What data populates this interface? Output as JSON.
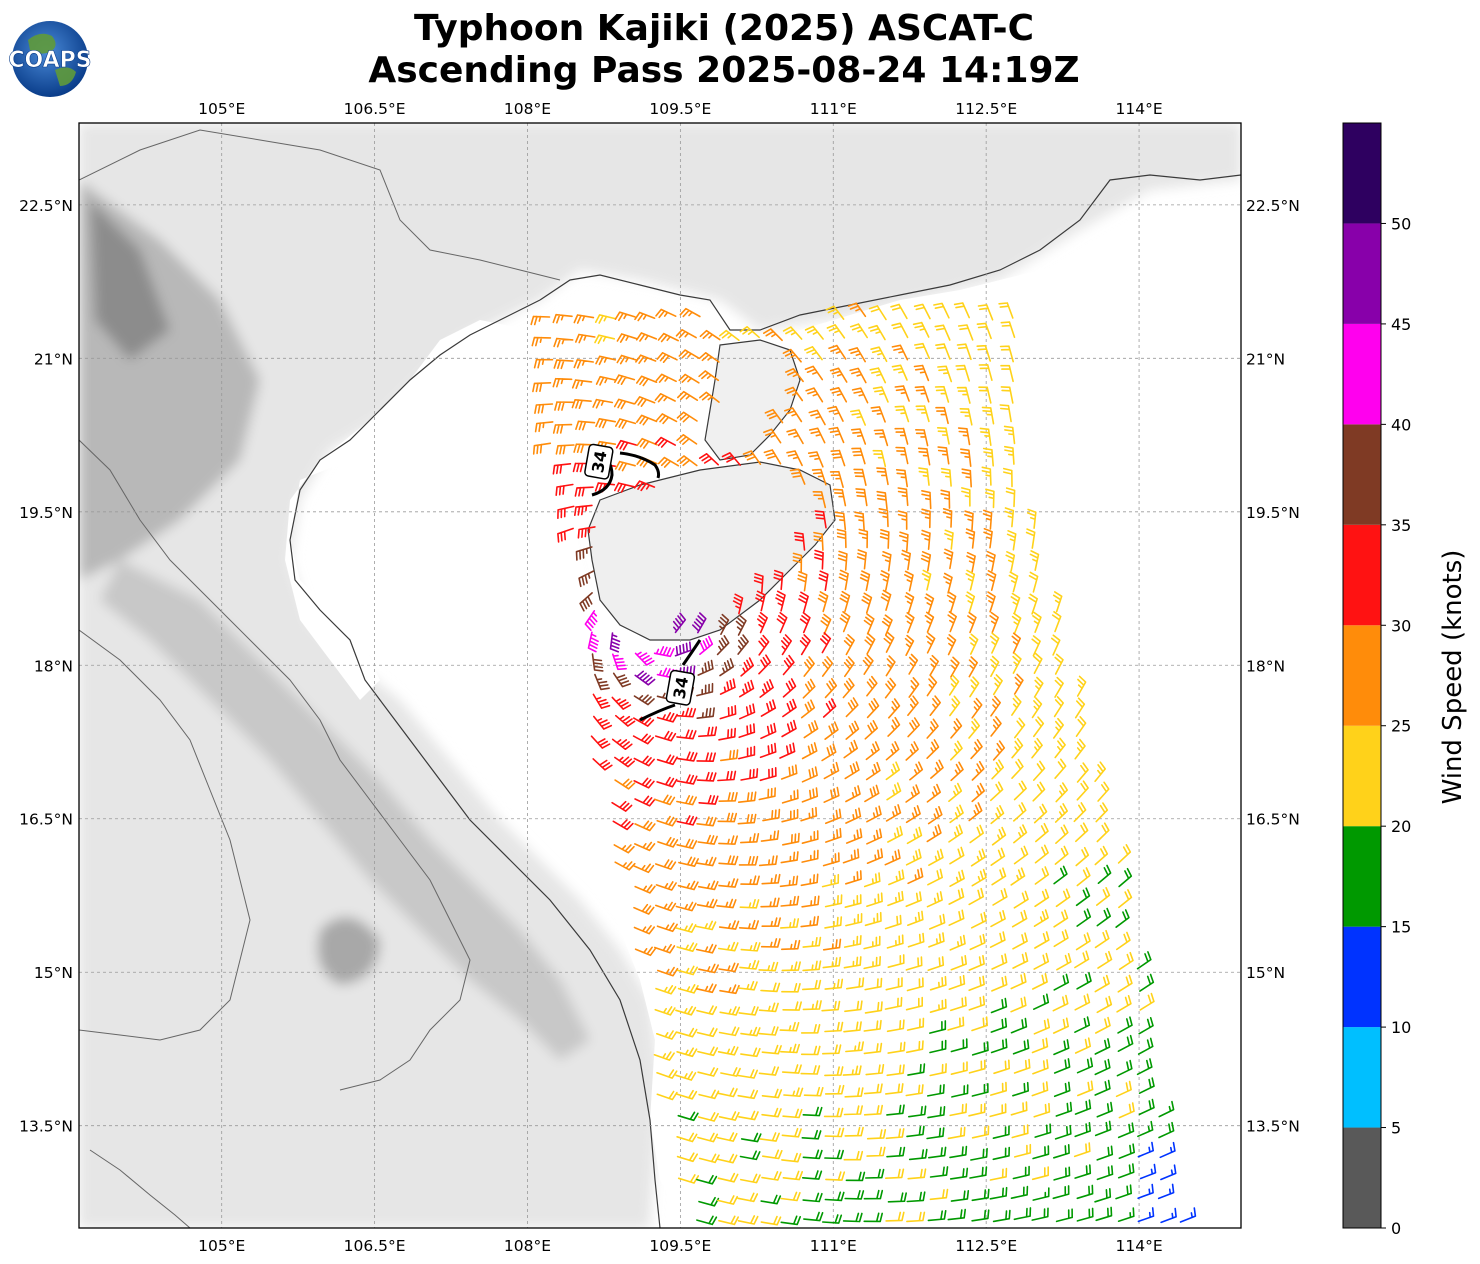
{
  "title": {
    "line1": "Typhoon Kajiki (2025) ASCAT-C",
    "line2": "Ascending Pass 2025-08-24 14:19Z"
  },
  "logo": {
    "text": "COAPS"
  },
  "map": {
    "lon_range": [
      103.6,
      115.0
    ],
    "lat_range": [
      12.5,
      23.3
    ],
    "lon_ticks": [
      {
        "value": 105.0,
        "label": "105°E"
      },
      {
        "value": 106.5,
        "label": "106.5°E"
      },
      {
        "value": 108.0,
        "label": "108°E"
      },
      {
        "value": 109.5,
        "label": "109.5°E"
      },
      {
        "value": 111.0,
        "label": "111°E"
      },
      {
        "value": 112.5,
        "label": "112.5°E"
      },
      {
        "value": 114.0,
        "label": "114°E"
      }
    ],
    "lat_ticks": [
      {
        "value": 22.5,
        "label": "22.5°N"
      },
      {
        "value": 21.0,
        "label": "21°N"
      },
      {
        "value": 19.5,
        "label": "19.5°N"
      },
      {
        "value": 18.0,
        "label": "18°N"
      },
      {
        "value": 16.5,
        "label": "16.5°N"
      },
      {
        "value": 15.0,
        "label": "15°N"
      },
      {
        "value": 13.5,
        "label": "13.5°N"
      }
    ],
    "wind_radius_labels": [
      {
        "text": "34",
        "lon": 108.7,
        "lat": 19.99
      },
      {
        "text": "34",
        "lon": 109.5,
        "lat": 17.78
      }
    ],
    "storm_center": {
      "lon": 109.2,
      "lat": 18.4
    }
  },
  "colorbar": {
    "label": "Wind Speed (knots)",
    "ticks": [
      "0",
      "5",
      "10",
      "15",
      "20",
      "25",
      "30",
      "35",
      "40",
      "45",
      "50"
    ],
    "tick_values": [
      0,
      5,
      10,
      15,
      20,
      25,
      30,
      35,
      40,
      45,
      50
    ],
    "bins": [
      {
        "min": 0,
        "max": 5,
        "color": "#595959"
      },
      {
        "min": 5,
        "max": 10,
        "color": "#00bfff"
      },
      {
        "min": 10,
        "max": 15,
        "color": "#0033ff"
      },
      {
        "min": 15,
        "max": 20,
        "color": "#009900"
      },
      {
        "min": 20,
        "max": 25,
        "color": "#ffd21a"
      },
      {
        "min": 25,
        "max": 30,
        "color": "#ff8c0a"
      },
      {
        "min": 30,
        "max": 35,
        "color": "#ff1212"
      },
      {
        "min": 35,
        "max": 40,
        "color": "#7f3a24"
      },
      {
        "min": 40,
        "max": 45,
        "color": "#ff00ee"
      },
      {
        "min": 45,
        "max": 50,
        "color": "#8800aa"
      },
      {
        "min": 50,
        "max": 55,
        "color": "#2e0060"
      }
    ]
  }
}
